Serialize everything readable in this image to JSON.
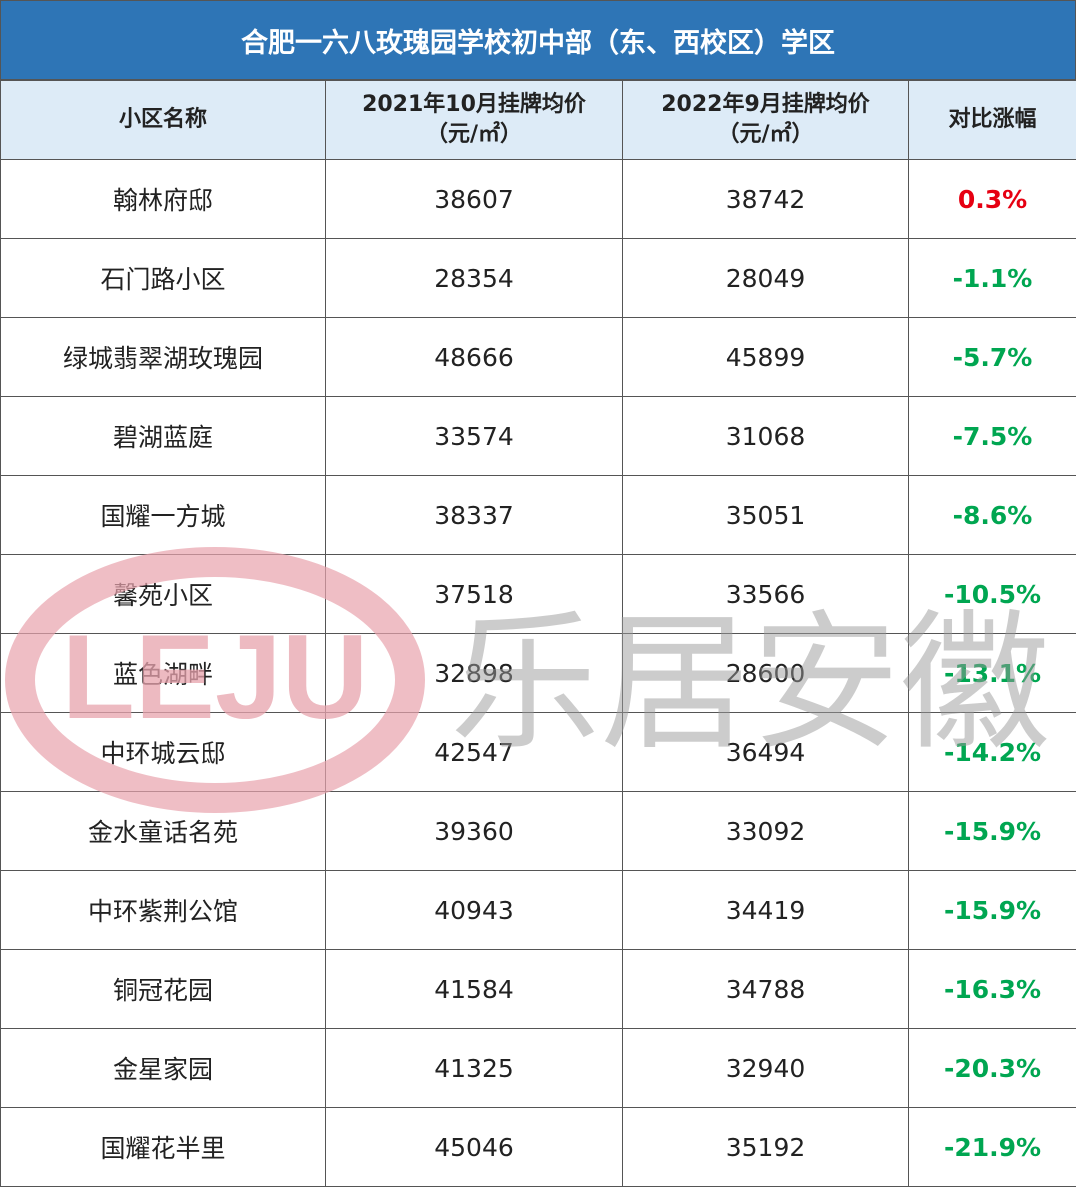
{
  "title": "合肥一六八玫瑰园学校初中部（东、西校区）学区",
  "table": {
    "header": [
      [
        "小区名称"
      ],
      [
        "2021年10月挂牌均价",
        "（元/㎡）"
      ],
      [
        "2022年9月挂牌均价",
        "（元/㎡）"
      ],
      [
        "对比涨幅"
      ]
    ],
    "rows": [
      [
        "翰林府邸",
        "38607",
        "38742",
        "0.3%"
      ],
      [
        "石门路小区",
        "28354",
        "28049",
        "-1.1%"
      ],
      [
        "绿城翡翠湖玫瑰园",
        "48666",
        "45899",
        "-5.7%"
      ],
      [
        "碧湖蓝庭",
        "33574",
        "31068",
        "-7.5%"
      ],
      [
        "国耀一方城",
        "38337",
        "35051",
        "-8.6%"
      ],
      [
        "馨苑小区",
        "37518",
        "33566",
        "-10.5%"
      ],
      [
        "蓝色湖畔",
        "32898",
        "28600",
        "-13.1%"
      ],
      [
        "中环城云邸",
        "42547",
        "36494",
        "-14.2%"
      ],
      [
        "金水童话名苑",
        "39360",
        "33092",
        "-15.9%"
      ],
      [
        "中环紫荆公馆",
        "40943",
        "34419",
        "-15.9%"
      ],
      [
        "铜冠花园",
        "41584",
        "34788",
        "-16.3%"
      ],
      [
        "金星家园",
        "41325",
        "32940",
        "-20.3%"
      ],
      [
        "国耀花半里",
        "45046",
        "35192",
        "-21.9%"
      ]
    ]
  },
  "watermark": {
    "logo": "LEJU",
    "text": "乐居安徽"
  }
}
